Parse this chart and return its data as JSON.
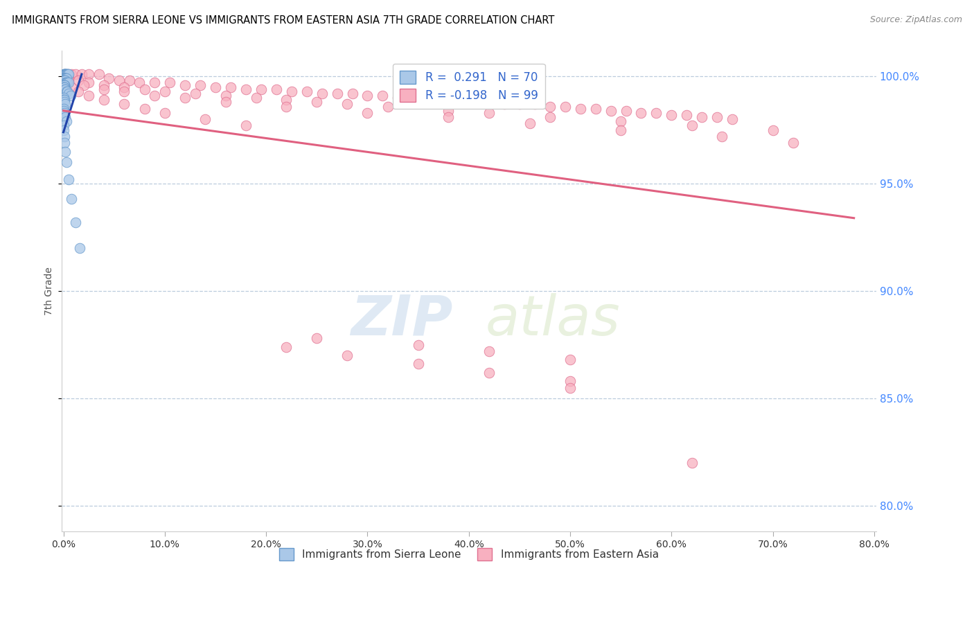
{
  "title": "IMMIGRANTS FROM SIERRA LEONE VS IMMIGRANTS FROM EASTERN ASIA 7TH GRADE CORRELATION CHART",
  "source": "Source: ZipAtlas.com",
  "ylabel": "7th Grade",
  "legend_label_blue": "Immigrants from Sierra Leone",
  "legend_label_pink": "Immigrants from Eastern Asia",
  "R_blue": 0.291,
  "N_blue": 70,
  "R_pink": -0.198,
  "N_pink": 99,
  "xlim": [
    -0.002,
    0.802
  ],
  "ylim": [
    0.788,
    1.012
  ],
  "xticks": [
    0.0,
    0.1,
    0.2,
    0.3,
    0.4,
    0.5,
    0.6,
    0.7,
    0.8
  ],
  "yticks": [
    0.8,
    0.85,
    0.9,
    0.95,
    1.0
  ],
  "color_blue": "#aac8e8",
  "color_blue_edge": "#6699cc",
  "color_blue_line": "#2244aa",
  "color_pink": "#f8b0c0",
  "color_pink_edge": "#e07090",
  "color_pink_line": "#e06080",
  "watermark_zip": "ZIP",
  "watermark_atlas": "atlas",
  "blue_x": [
    0.0003,
    0.0005,
    0.0008,
    0.001,
    0.0012,
    0.0015,
    0.0018,
    0.002,
    0.0022,
    0.0025,
    0.003,
    0.0035,
    0.004,
    0.0045,
    0.005,
    0.0003,
    0.0005,
    0.0008,
    0.001,
    0.0012,
    0.0015,
    0.0018,
    0.002,
    0.0025,
    0.003,
    0.0003,
    0.0005,
    0.0008,
    0.001,
    0.0015,
    0.002,
    0.0025,
    0.003,
    0.004,
    0.005,
    0.0003,
    0.0005,
    0.0008,
    0.001,
    0.0012,
    0.0003,
    0.0005,
    0.0008,
    0.001,
    0.0015,
    0.002,
    0.003,
    0.004,
    0.005,
    0.007,
    0.0003,
    0.0005,
    0.0008,
    0.001,
    0.0015,
    0.0003,
    0.0005,
    0.001,
    0.002,
    0.003,
    0.0003,
    0.0005,
    0.0008,
    0.001,
    0.002,
    0.003,
    0.005,
    0.008,
    0.012,
    0.016
  ],
  "blue_y": [
    1.001,
    1.001,
    1.001,
    1.001,
    1.001,
    1.001,
    1.001,
    1.001,
    1.001,
    1.001,
    1.001,
    1.001,
    1.001,
    1.001,
    1.001,
    0.999,
    0.999,
    0.999,
    0.999,
    0.999,
    0.999,
    0.999,
    0.999,
    0.999,
    0.999,
    0.998,
    0.998,
    0.998,
    0.998,
    0.998,
    0.997,
    0.997,
    0.997,
    0.997,
    0.997,
    0.996,
    0.996,
    0.996,
    0.996,
    0.996,
    0.995,
    0.995,
    0.995,
    0.995,
    0.994,
    0.994,
    0.993,
    0.993,
    0.992,
    0.991,
    0.99,
    0.989,
    0.989,
    0.988,
    0.987,
    0.985,
    0.984,
    0.983,
    0.981,
    0.979,
    0.977,
    0.975,
    0.972,
    0.969,
    0.965,
    0.96,
    0.952,
    0.943,
    0.932,
    0.92
  ],
  "pink_x": [
    0.002,
    0.005,
    0.008,
    0.012,
    0.018,
    0.025,
    0.035,
    0.045,
    0.055,
    0.065,
    0.075,
    0.09,
    0.105,
    0.12,
    0.135,
    0.15,
    0.165,
    0.18,
    0.195,
    0.21,
    0.225,
    0.24,
    0.255,
    0.27,
    0.285,
    0.3,
    0.315,
    0.33,
    0.345,
    0.36,
    0.375,
    0.39,
    0.405,
    0.42,
    0.435,
    0.45,
    0.465,
    0.48,
    0.495,
    0.51,
    0.525,
    0.54,
    0.555,
    0.57,
    0.585,
    0.6,
    0.615,
    0.63,
    0.645,
    0.66,
    0.005,
    0.015,
    0.025,
    0.04,
    0.06,
    0.08,
    0.1,
    0.13,
    0.16,
    0.19,
    0.22,
    0.25,
    0.28,
    0.32,
    0.38,
    0.42,
    0.48,
    0.55,
    0.62,
    0.7,
    0.005,
    0.02,
    0.04,
    0.06,
    0.09,
    0.12,
    0.16,
    0.22,
    0.3,
    0.38,
    0.46,
    0.55,
    0.65,
    0.72,
    0.002,
    0.008,
    0.015,
    0.025,
    0.04,
    0.06,
    0.08,
    0.1,
    0.14,
    0.18,
    0.22,
    0.28,
    0.35,
    0.42,
    0.5
  ],
  "pink_y": [
    1.001,
    1.001,
    1.001,
    1.001,
    1.001,
    1.001,
    1.001,
    0.999,
    0.998,
    0.998,
    0.997,
    0.997,
    0.997,
    0.996,
    0.996,
    0.995,
    0.995,
    0.994,
    0.994,
    0.994,
    0.993,
    0.993,
    0.992,
    0.992,
    0.992,
    0.991,
    0.991,
    0.99,
    0.99,
    0.99,
    0.989,
    0.989,
    0.988,
    0.988,
    0.987,
    0.987,
    0.987,
    0.986,
    0.986,
    0.985,
    0.985,
    0.984,
    0.984,
    0.983,
    0.983,
    0.982,
    0.982,
    0.981,
    0.981,
    0.98,
    0.999,
    0.998,
    0.997,
    0.996,
    0.995,
    0.994,
    0.993,
    0.992,
    0.991,
    0.99,
    0.989,
    0.988,
    0.987,
    0.986,
    0.984,
    0.983,
    0.981,
    0.979,
    0.977,
    0.975,
    0.998,
    0.996,
    0.994,
    0.993,
    0.991,
    0.99,
    0.988,
    0.986,
    0.983,
    0.981,
    0.978,
    0.975,
    0.972,
    0.969,
    0.997,
    0.995,
    0.993,
    0.991,
    0.989,
    0.987,
    0.985,
    0.983,
    0.98,
    0.977,
    0.874,
    0.87,
    0.866,
    0.862,
    0.858
  ],
  "pink_outlier_x": [
    0.25,
    0.35,
    0.42,
    0.5,
    0.62,
    0.5
  ],
  "pink_outlier_y": [
    0.878,
    0.875,
    0.872,
    0.868,
    0.82,
    0.855
  ],
  "blue_trend_x": [
    0.0,
    0.018
  ],
  "blue_trend_y": [
    0.974,
    1.001
  ],
  "pink_trend_x": [
    0.0,
    0.78
  ],
  "pink_trend_y": [
    0.984,
    0.934
  ]
}
